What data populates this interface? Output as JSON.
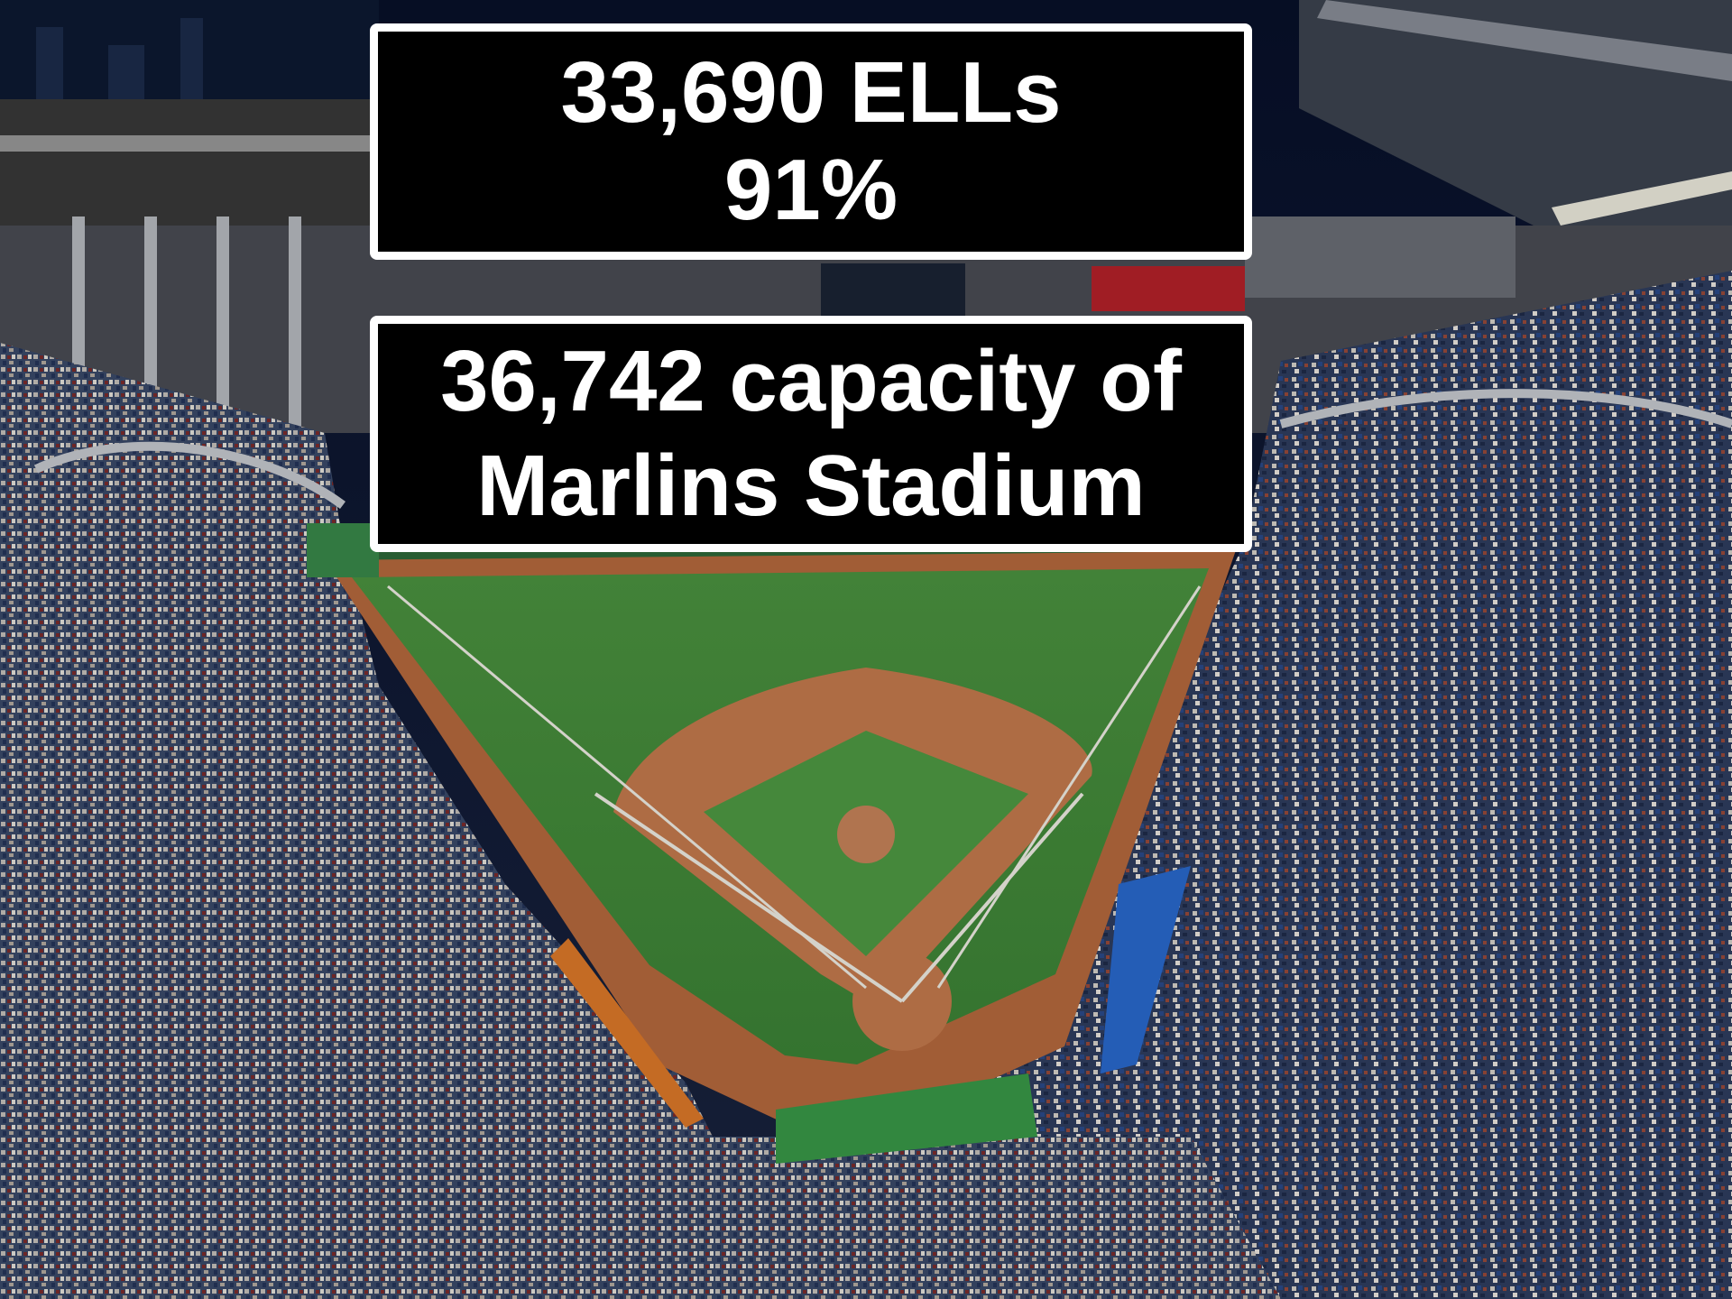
{
  "colors": {
    "caption_background": "#000000",
    "caption_border": "#ffffff",
    "caption_text": "#ffffff",
    "field_grass": "#3f8a3a",
    "infield_dirt": "#c9774a",
    "sky": "#0b1326"
  },
  "top_box": {
    "line1": "33,690 ELLs",
    "line2": "91%"
  },
  "bottom_box": {
    "line1": "36,742 capacity of",
    "line2": "Marlins Stadium"
  }
}
